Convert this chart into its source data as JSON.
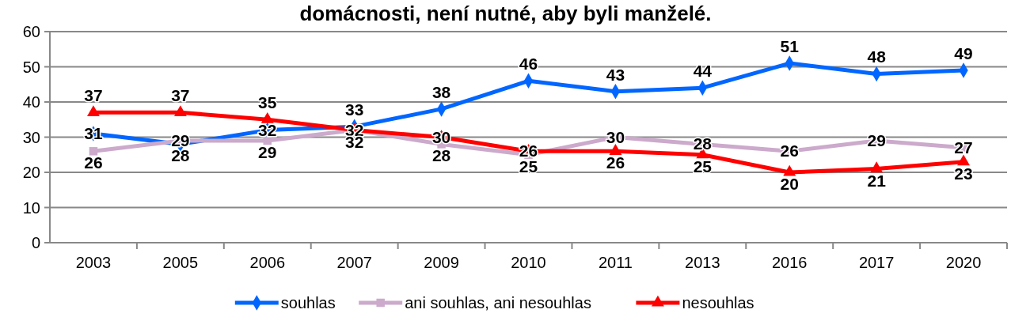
{
  "chart_data": {
    "type": "line",
    "title": "domácnosti, není nutné, aby byli manželé.",
    "categories": [
      "2003",
      "2005",
      "2006",
      "2007",
      "2009",
      "2010",
      "2011",
      "2013",
      "2016",
      "2017",
      "2020"
    ],
    "series": [
      {
        "name": "souhlas",
        "color": "#0066ff",
        "marker": "diamond",
        "values": [
          31,
          28,
          32,
          33,
          38,
          46,
          43,
          44,
          51,
          48,
          49
        ]
      },
      {
        "name": "ani souhlas, ani nesouhlas",
        "color": "#ccaacc",
        "marker": "square",
        "values": [
          26,
          29,
          29,
          32,
          28,
          25,
          30,
          28,
          26,
          29,
          27
        ]
      },
      {
        "name": "nesouhlas",
        "color": "#ff0000",
        "marker": "triangle",
        "values": [
          37,
          37,
          35,
          32,
          30,
          26,
          26,
          25,
          20,
          21,
          23
        ]
      }
    ],
    "ylim": [
      0,
      60
    ],
    "yticks": [
      0,
      10,
      20,
      30,
      40,
      50,
      60
    ],
    "grid": "y",
    "legend": "bottom",
    "data_labels": true
  }
}
